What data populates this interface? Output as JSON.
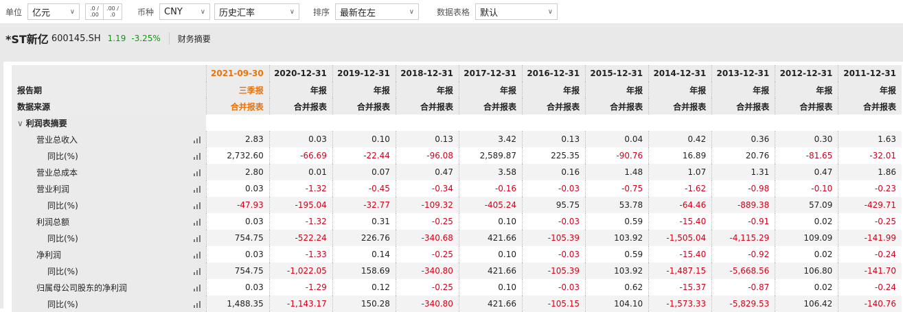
{
  "toolbar": {
    "unit_label": "单位",
    "unit": "亿元",
    "currency_label": "币种",
    "currency": "CNY",
    "rate": "历史汇率",
    "sort_label": "排序",
    "sort": "最新在左",
    "table_label": "数据表格",
    "table": "默认",
    "dec_inc": ".0 / .00",
    "dec_dec": ".00 / .0"
  },
  "stock": {
    "name": "*ST新亿",
    "code": "600145.SH",
    "price": "1.19",
    "change": "-3.25%",
    "tab": "财务摘要"
  },
  "header": {
    "period_label": "报告期",
    "source_label": "数据来源",
    "columns": [
      {
        "date": "2021-09-30",
        "type": "三季报",
        "source": "合并报表"
      },
      {
        "date": "2020-12-31",
        "type": "年报",
        "source": "合并报表"
      },
      {
        "date": "2019-12-31",
        "type": "年报",
        "source": "合并报表"
      },
      {
        "date": "2018-12-31",
        "type": "年报",
        "source": "合并报表"
      },
      {
        "date": "2017-12-31",
        "type": "年报",
        "source": "合并报表"
      },
      {
        "date": "2016-12-31",
        "type": "年报",
        "source": "合并报表"
      },
      {
        "date": "2015-12-31",
        "type": "年报",
        "source": "合并报表"
      },
      {
        "date": "2014-12-31",
        "type": "年报",
        "source": "合并报表"
      },
      {
        "date": "2013-12-31",
        "type": "年报",
        "source": "合并报表"
      },
      {
        "date": "2012-12-31",
        "type": "年报",
        "source": "合并报表"
      },
      {
        "date": "2011-12-31",
        "type": "年报",
        "source": "合并报表"
      }
    ]
  },
  "section": {
    "title": "利润表摘要"
  },
  "rows": [
    {
      "label": "营业总收入",
      "sub": false,
      "values": [
        "2.83",
        "0.03",
        "0.10",
        "0.13",
        "3.42",
        "0.13",
        "0.04",
        "0.42",
        "0.36",
        "0.30",
        "1.63"
      ]
    },
    {
      "label": "同比(%)",
      "sub": true,
      "values": [
        "2,732.60",
        "-66.69",
        "-22.44",
        "-96.08",
        "2,589.87",
        "225.35",
        "-90.76",
        "16.89",
        "20.76",
        "-81.65",
        "-32.01"
      ]
    },
    {
      "label": "营业总成本",
      "sub": false,
      "values": [
        "2.80",
        "0.01",
        "0.07",
        "0.47",
        "3.58",
        "0.16",
        "1.48",
        "1.07",
        "1.31",
        "0.47",
        "1.86"
      ]
    },
    {
      "label": "营业利润",
      "sub": false,
      "values": [
        "0.03",
        "-1.32",
        "-0.45",
        "-0.34",
        "-0.16",
        "-0.03",
        "-0.75",
        "-1.62",
        "-0.98",
        "-0.10",
        "-0.23"
      ]
    },
    {
      "label": "同比(%)",
      "sub": true,
      "values": [
        "-47.93",
        "-195.04",
        "-32.77",
        "-109.32",
        "-405.24",
        "95.75",
        "53.78",
        "-64.46",
        "-889.38",
        "57.09",
        "-429.71"
      ]
    },
    {
      "label": "利润总额",
      "sub": false,
      "values": [
        "0.03",
        "-1.32",
        "0.31",
        "-0.25",
        "0.10",
        "-0.03",
        "0.59",
        "-15.40",
        "-0.91",
        "0.02",
        "-0.25"
      ]
    },
    {
      "label": "同比(%)",
      "sub": true,
      "values": [
        "754.75",
        "-522.24",
        "226.76",
        "-340.68",
        "421.66",
        "-105.39",
        "103.92",
        "-1,505.04",
        "-4,115.29",
        "109.09",
        "-141.99"
      ]
    },
    {
      "label": "净利润",
      "sub": false,
      "values": [
        "0.03",
        "-1.33",
        "0.14",
        "-0.25",
        "0.10",
        "-0.03",
        "0.59",
        "-15.40",
        "-0.92",
        "0.02",
        "-0.24"
      ]
    },
    {
      "label": "同比(%)",
      "sub": true,
      "values": [
        "754.75",
        "-1,022.05",
        "158.69",
        "-340.80",
        "421.66",
        "-105.39",
        "103.92",
        "-1,487.15",
        "-5,668.56",
        "106.80",
        "-141.70"
      ]
    },
    {
      "label": "归属母公司股东的净利润",
      "sub": false,
      "values": [
        "0.03",
        "-1.29",
        "0.12",
        "-0.25",
        "0.10",
        "-0.03",
        "0.62",
        "-15.37",
        "-0.87",
        "0.02",
        "-0.24"
      ]
    },
    {
      "label": "同比(%)",
      "sub": true,
      "values": [
        "1,488.35",
        "-1,143.17",
        "150.28",
        "-340.80",
        "421.66",
        "-105.15",
        "104.10",
        "-1,573.33",
        "-5,829.53",
        "106.42",
        "-140.76"
      ]
    }
  ],
  "colors": {
    "accent": "#e8730c",
    "negative": "#d0021b",
    "positive": "#0a9a0a"
  }
}
